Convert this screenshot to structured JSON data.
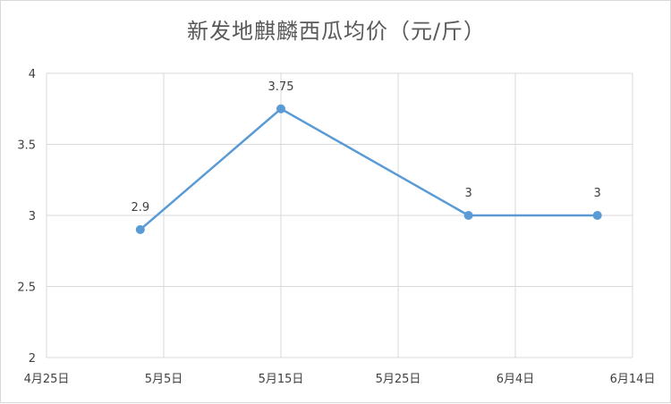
{
  "chart_data": {
    "type": "line",
    "title": "新发地麒麟西瓜均价（元/斤）",
    "xlabel": "",
    "ylabel": "",
    "x_ticks": [
      "4月25日",
      "5月5日",
      "5月15日",
      "5月25日",
      "6月4日",
      "6月14日"
    ],
    "x_tick_dates": [
      "2024-04-25",
      "2024-05-05",
      "2024-05-15",
      "2024-05-25",
      "2024-06-04",
      "2024-06-14"
    ],
    "y_ticks": [
      "2",
      "2.5",
      "3",
      "3.5",
      "4"
    ],
    "ylim": [
      2,
      4
    ],
    "grid": true,
    "series": [
      {
        "color": "#5b9bd5",
        "points": [
          {
            "x": "2024-05-03",
            "y": 2.9,
            "label": "2.9"
          },
          {
            "x": "2024-05-15",
            "y": 3.75,
            "label": "3.75"
          },
          {
            "x": "2024-05-31",
            "y": 3,
            "label": "3"
          },
          {
            "x": "2024-06-11",
            "y": 3,
            "label": "3"
          }
        ]
      }
    ]
  }
}
